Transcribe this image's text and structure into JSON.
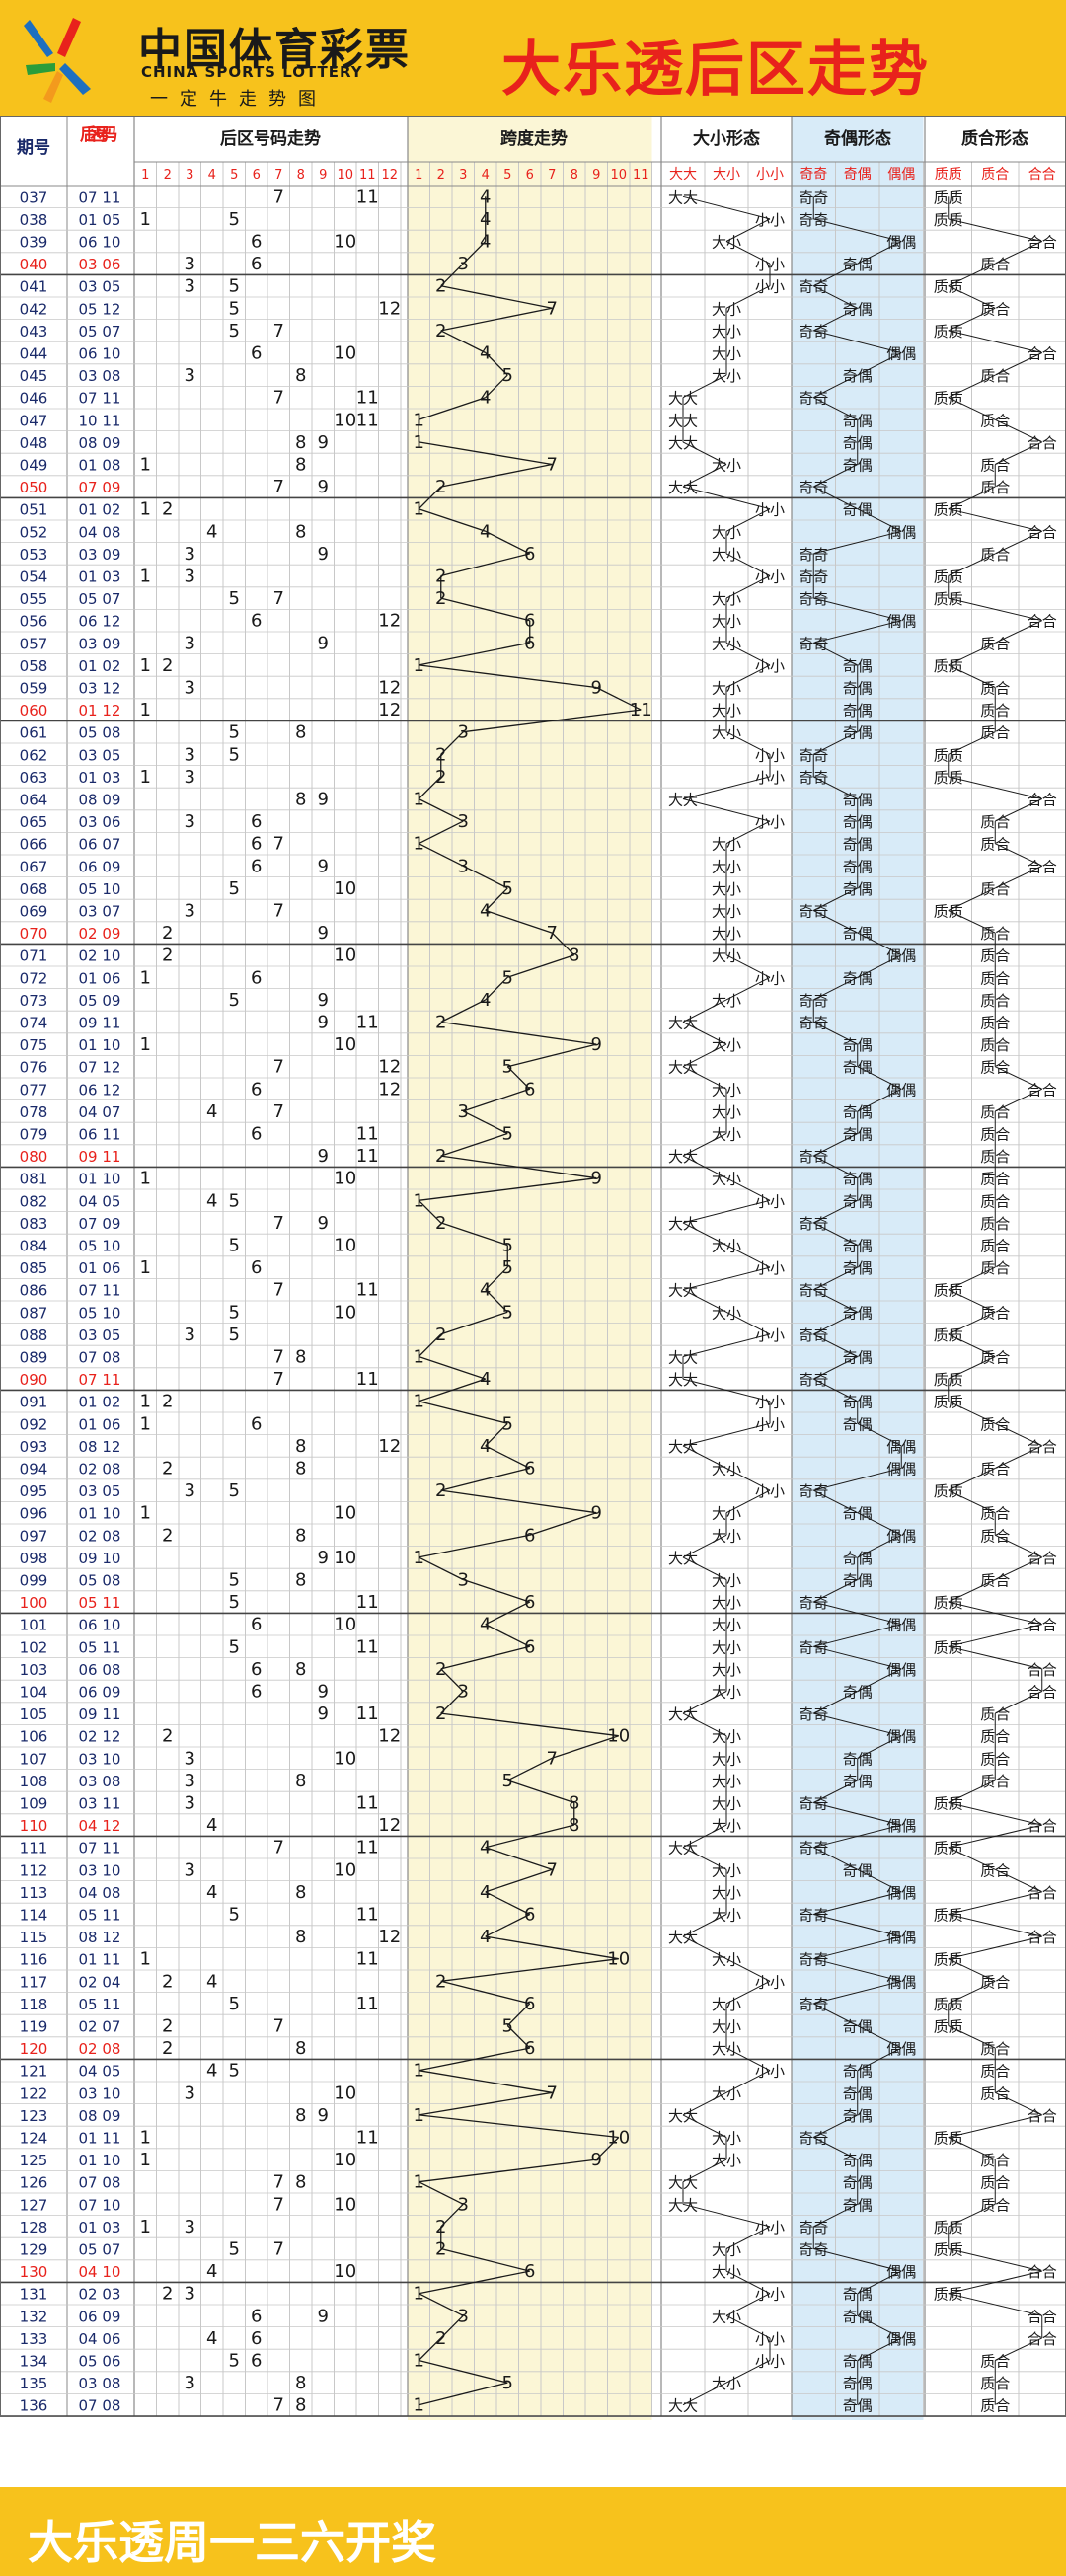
{
  "header": {
    "logo_cn": "中国体育彩票",
    "logo_en": "CHINA SPORTS LOTTERY",
    "slogan": "一定牛走势图",
    "title": "大乐透后区走势"
  },
  "footer": {
    "text": "大乐透周一三六开奖"
  },
  "colors": {
    "title_red": "#e8221c",
    "brand_yellow": "#f7c21c",
    "span_band": "#fbf6d6",
    "odd_even_band": "#d8ebf8",
    "grid_line": "#c8c8c8"
  },
  "table_headers": {
    "issue": "期号",
    "back_numbers": "后区号码",
    "trend": "后区号码走势",
    "span": "跨度走势",
    "size": "大小形态",
    "parity": "奇偶形态",
    "prime": "质合形态"
  },
  "trend_labels": [
    "1",
    "2",
    "3",
    "4",
    "5",
    "6",
    "7",
    "8",
    "9",
    "10",
    "11",
    "12"
  ],
  "span_labels": [
    "1",
    "2",
    "3",
    "4",
    "5",
    "6",
    "7",
    "8",
    "9",
    "10",
    "11"
  ],
  "size_labels": [
    "大大",
    "大小",
    "小小"
  ],
  "parity_labels": [
    "奇奇",
    "奇偶",
    "偶偶"
  ],
  "prime_labels": [
    "质质",
    "质合",
    "合合"
  ],
  "chart_data": {
    "type": "table",
    "title": "大乐透后区走势",
    "columns": [
      "期号",
      "后区号码",
      "跨度"
    ],
    "rows": [
      [
        "037",
        "07 11"
      ],
      [
        "038",
        "01 05"
      ],
      [
        "039",
        "06 10"
      ],
      [
        "040",
        "03 06"
      ],
      [
        "041",
        "03 05"
      ],
      [
        "042",
        "05 12"
      ],
      [
        "043",
        "05 07"
      ],
      [
        "044",
        "06 10"
      ],
      [
        "045",
        "03 08"
      ],
      [
        "046",
        "07 11"
      ],
      [
        "047",
        "10 11"
      ],
      [
        "048",
        "08 09"
      ],
      [
        "049",
        "01 08"
      ],
      [
        "050",
        "07 09"
      ],
      [
        "051",
        "01 02"
      ],
      [
        "052",
        "04 08"
      ],
      [
        "053",
        "03 09"
      ],
      [
        "054",
        "01 03"
      ],
      [
        "055",
        "05 07"
      ],
      [
        "056",
        "06 12"
      ],
      [
        "057",
        "03 09"
      ],
      [
        "058",
        "01 02"
      ],
      [
        "059",
        "03 12"
      ],
      [
        "060",
        "01 12"
      ],
      [
        "061",
        "05 08"
      ],
      [
        "062",
        "03 05"
      ],
      [
        "063",
        "01 03"
      ],
      [
        "064",
        "08 09"
      ],
      [
        "065",
        "03 06"
      ],
      [
        "066",
        "06 07"
      ],
      [
        "067",
        "06 09"
      ],
      [
        "068",
        "05 10"
      ],
      [
        "069",
        "03 07"
      ],
      [
        "070",
        "02 09"
      ],
      [
        "071",
        "02 10"
      ],
      [
        "072",
        "01 06"
      ],
      [
        "073",
        "05 09"
      ],
      [
        "074",
        "09 11"
      ],
      [
        "075",
        "01 10"
      ],
      [
        "076",
        "07 12"
      ],
      [
        "077",
        "06 12"
      ],
      [
        "078",
        "04 07"
      ],
      [
        "079",
        "06 11"
      ],
      [
        "080",
        "09 11"
      ],
      [
        "081",
        "01 10"
      ],
      [
        "082",
        "04 05"
      ],
      [
        "083",
        "07 09"
      ],
      [
        "084",
        "05 10"
      ],
      [
        "085",
        "01 06"
      ],
      [
        "086",
        "07 11"
      ],
      [
        "087",
        "05 10"
      ],
      [
        "088",
        "03 05"
      ],
      [
        "089",
        "07 08"
      ],
      [
        "090",
        "07 11"
      ],
      [
        "091",
        "01 02"
      ],
      [
        "092",
        "01 06"
      ],
      [
        "093",
        "08 12"
      ],
      [
        "094",
        "02 08"
      ],
      [
        "095",
        "03 05"
      ],
      [
        "096",
        "01 10"
      ],
      [
        "097",
        "02 08"
      ],
      [
        "098",
        "09 10"
      ],
      [
        "099",
        "05 08"
      ],
      [
        "100",
        "05 11"
      ],
      [
        "101",
        "06 10"
      ],
      [
        "102",
        "05 11"
      ],
      [
        "103",
        "06 08"
      ],
      [
        "104",
        "06 09"
      ],
      [
        "105",
        "09 11"
      ],
      [
        "106",
        "02 12"
      ],
      [
        "107",
        "03 10"
      ],
      [
        "108",
        "03 08"
      ],
      [
        "109",
        "03 11"
      ],
      [
        "110",
        "04 12"
      ],
      [
        "111",
        "07 11"
      ],
      [
        "112",
        "03 10"
      ],
      [
        "113",
        "04 08"
      ],
      [
        "114",
        "05 11"
      ],
      [
        "115",
        "08 12"
      ],
      [
        "116",
        "01 11"
      ],
      [
        "117",
        "02 04"
      ],
      [
        "118",
        "05 11"
      ],
      [
        "119",
        "02 07"
      ],
      [
        "120",
        "02 08"
      ],
      [
        "121",
        "04 05"
      ],
      [
        "122",
        "03 10"
      ],
      [
        "123",
        "08 09"
      ],
      [
        "124",
        "01 11"
      ],
      [
        "125",
        "01 10"
      ],
      [
        "126",
        "07 08"
      ],
      [
        "127",
        "07 10"
      ],
      [
        "128",
        "01 03"
      ],
      [
        "129",
        "05 07"
      ],
      [
        "130",
        "04 10"
      ],
      [
        "131",
        "02 03"
      ],
      [
        "132",
        "06 09"
      ],
      [
        "133",
        "04 06"
      ],
      [
        "134",
        "05 06"
      ],
      [
        "135",
        "03 08"
      ],
      [
        "136",
        "07 08"
      ]
    ]
  }
}
